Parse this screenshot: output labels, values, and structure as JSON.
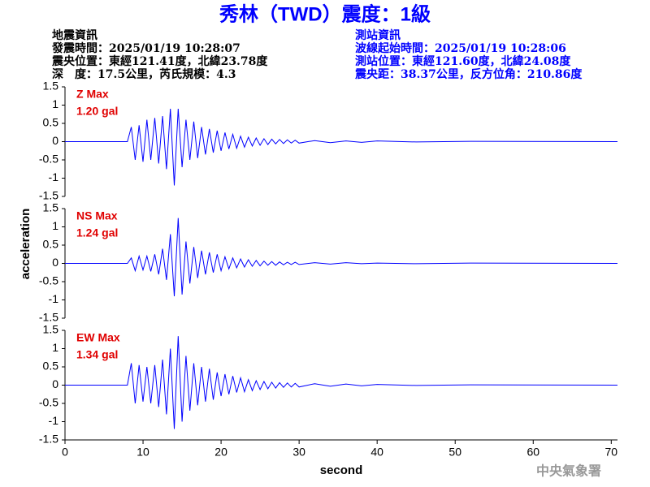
{
  "header": {
    "title": "秀林（TWD）震度：1級",
    "left": [
      "地震資訊",
      "發震時間：2025/01/19 10:28:07",
      "震央位置：東經121.41度，北緯23.78度",
      "深　度：17.5公里，芮氏規模：4.3"
    ],
    "right": [
      "測站資訊",
      "波線起始時間：2025/01/19 10:28:06",
      "測站位置：東經121.60度，北緯24.08度",
      "震央距：38.37公里，反方位角：210.86度"
    ]
  },
  "footer": "中央氣象署",
  "chart_data": [
    {
      "type": "line",
      "label": "Z Max",
      "max_label": "1.20 gal",
      "color": "#0000ff",
      "xlim": [
        0,
        70.8
      ],
      "ylim": [
        -1.5,
        1.5
      ],
      "yticks": [
        1.5,
        1,
        0.5,
        0,
        -0.5,
        -1,
        -1.5
      ],
      "x": [
        0,
        8,
        8.5,
        9,
        9.5,
        10,
        10.5,
        11,
        11.5,
        12,
        12.5,
        13,
        13.5,
        14,
        14.5,
        15,
        15.5,
        16,
        16.5,
        17,
        17.5,
        18,
        18.5,
        19,
        19.5,
        20,
        20.5,
        21,
        21.5,
        22,
        22.5,
        23,
        23.5,
        24,
        24.5,
        25,
        25.5,
        26,
        26.5,
        27,
        27.5,
        28,
        28.5,
        29,
        29.5,
        30,
        32,
        34,
        36,
        38,
        40,
        45,
        52,
        70.8
      ],
      "values": [
        0,
        0,
        0.4,
        -0.5,
        0.45,
        -0.55,
        0.6,
        -0.5,
        0.65,
        -0.6,
        0.7,
        -0.75,
        0.9,
        -1.2,
        0.9,
        -0.7,
        0.6,
        -0.5,
        0.55,
        -0.45,
        0.4,
        -0.35,
        0.35,
        -0.3,
        0.3,
        -0.25,
        0.25,
        -0.2,
        0.2,
        -0.18,
        0.15,
        -0.15,
        0.12,
        -0.12,
        0.1,
        -0.1,
        0.08,
        -0.08,
        0.07,
        -0.06,
        0.06,
        -0.05,
        0.05,
        -0.04,
        0.04,
        -0.04,
        0.03,
        -0.03,
        0.02,
        -0.02,
        0.02,
        -0.01,
        0.01,
        0
      ]
    },
    {
      "type": "line",
      "label": "NS Max",
      "max_label": "1.24 gal",
      "ylabel": "acceleration",
      "color": "#0000ff",
      "xlim": [
        0,
        70.8
      ],
      "ylim": [
        -1.5,
        1.5
      ],
      "yticks": [
        1.5,
        1,
        0.5,
        0,
        -0.5,
        -1,
        -1.5
      ],
      "x": [
        0,
        8,
        8.5,
        9,
        9.5,
        10,
        10.5,
        11,
        11.5,
        12,
        12.5,
        13,
        13.5,
        14,
        14.5,
        15,
        15.5,
        16,
        16.5,
        17,
        17.5,
        18,
        18.5,
        19,
        19.5,
        20,
        20.5,
        21,
        21.5,
        22,
        22.5,
        23,
        23.5,
        24,
        24.5,
        25,
        25.5,
        26,
        26.5,
        27,
        27.5,
        28,
        28.5,
        29,
        29.5,
        30,
        32,
        34,
        36,
        38,
        40,
        45,
        52,
        70.8
      ],
      "values": [
        0,
        0,
        0.15,
        -0.2,
        0.2,
        -0.18,
        0.2,
        -0.22,
        0.25,
        -0.3,
        0.4,
        -0.45,
        0.8,
        -0.9,
        1.24,
        -0.85,
        0.6,
        -0.55,
        0.45,
        -0.4,
        0.35,
        -0.3,
        0.3,
        -0.25,
        0.25,
        -0.2,
        0.18,
        -0.15,
        0.15,
        -0.12,
        0.12,
        -0.1,
        0.1,
        -0.08,
        0.08,
        -0.07,
        0.06,
        -0.05,
        0.05,
        -0.05,
        0.04,
        -0.04,
        0.03,
        -0.03,
        0.03,
        -0.03,
        0.02,
        -0.02,
        0.02,
        -0.01,
        0.01,
        -0.01,
        0.01,
        0
      ]
    },
    {
      "type": "line",
      "label": "EW Max",
      "max_label": "1.34 gal",
      "xlabel": "second",
      "color": "#0000ff",
      "xlim": [
        0,
        70.8
      ],
      "ylim": [
        -1.5,
        1.5
      ],
      "yticks": [
        1.5,
        1,
        0.5,
        0,
        -0.5,
        -1,
        -1.5
      ],
      "xticks": [
        0,
        10,
        20,
        30,
        40,
        50,
        60,
        70
      ],
      "x": [
        0,
        8,
        8.5,
        9,
        9.5,
        10,
        10.5,
        11,
        11.5,
        12,
        12.5,
        13,
        13.5,
        14,
        14.5,
        15,
        15.5,
        16,
        16.5,
        17,
        17.5,
        18,
        18.5,
        19,
        19.5,
        20,
        20.5,
        21,
        21.5,
        22,
        22.5,
        23,
        23.5,
        24,
        24.5,
        25,
        25.5,
        26,
        26.5,
        27,
        27.5,
        28,
        28.5,
        29,
        29.5,
        30,
        32,
        34,
        36,
        38,
        40,
        45,
        52,
        70.8
      ],
      "values": [
        0,
        0,
        0.6,
        -0.5,
        0.55,
        -0.45,
        0.5,
        -0.5,
        0.55,
        -0.6,
        0.7,
        -0.8,
        1.0,
        -1.2,
        1.34,
        -1.0,
        0.8,
        -0.7,
        0.6,
        -0.55,
        0.5,
        -0.45,
        0.45,
        -0.4,
        0.35,
        -0.3,
        0.3,
        -0.25,
        0.25,
        -0.2,
        0.2,
        -0.18,
        0.15,
        -0.15,
        0.12,
        -0.12,
        0.1,
        -0.1,
        0.08,
        -0.08,
        0.07,
        -0.06,
        0.06,
        -0.05,
        0.05,
        -0.05,
        0.04,
        -0.03,
        0.03,
        -0.02,
        0.02,
        -0.01,
        0.01,
        0
      ]
    }
  ]
}
